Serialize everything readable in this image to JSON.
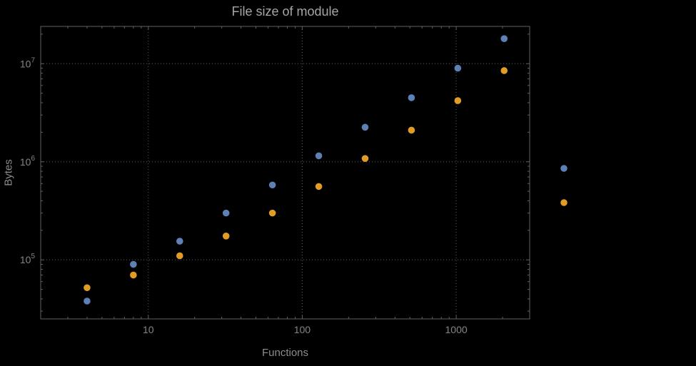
{
  "chart_data": {
    "type": "scatter",
    "title": "File size of module",
    "xlabel": "Functions",
    "ylabel": "Bytes",
    "x_scale": "log",
    "y_scale": "log",
    "xlim": [
      2,
      3000
    ],
    "ylim": [
      25000,
      24000000
    ],
    "x_major_ticks": [
      10,
      100,
      1000
    ],
    "x_tick_labels": [
      "10",
      "100",
      "1000"
    ],
    "y_major_ticks": [
      100000,
      1000000,
      10000000
    ],
    "y_tick_exponents": [
      5,
      6,
      7
    ],
    "grid": {
      "style": "dotted",
      "at": "major-ticks"
    },
    "x": [
      4,
      8,
      16,
      32,
      64,
      128,
      256,
      512,
      1024,
      2048
    ],
    "series": [
      {
        "name": "blue",
        "color": "#5e81b5",
        "values": [
          38000,
          90000,
          155000,
          300000,
          580000,
          1150000,
          2250000,
          4500000,
          9000000,
          18000000
        ]
      },
      {
        "name": "orange",
        "color": "#e19c24",
        "values": [
          52000,
          70000,
          110000,
          175000,
          300000,
          560000,
          1080000,
          2100000,
          4200000,
          8500000
        ]
      }
    ],
    "legend": {
      "position": "right-of-frame",
      "labels_visible": false,
      "marker_colors": [
        "#5e81b5",
        "#e19c24"
      ]
    }
  },
  "colors": {
    "background": "#000000",
    "title": "#a6a6a6",
    "axis_label": "#8c8c8c",
    "tick_label": "#848484",
    "frame": "#606060",
    "grid": "#5c5c5c"
  }
}
